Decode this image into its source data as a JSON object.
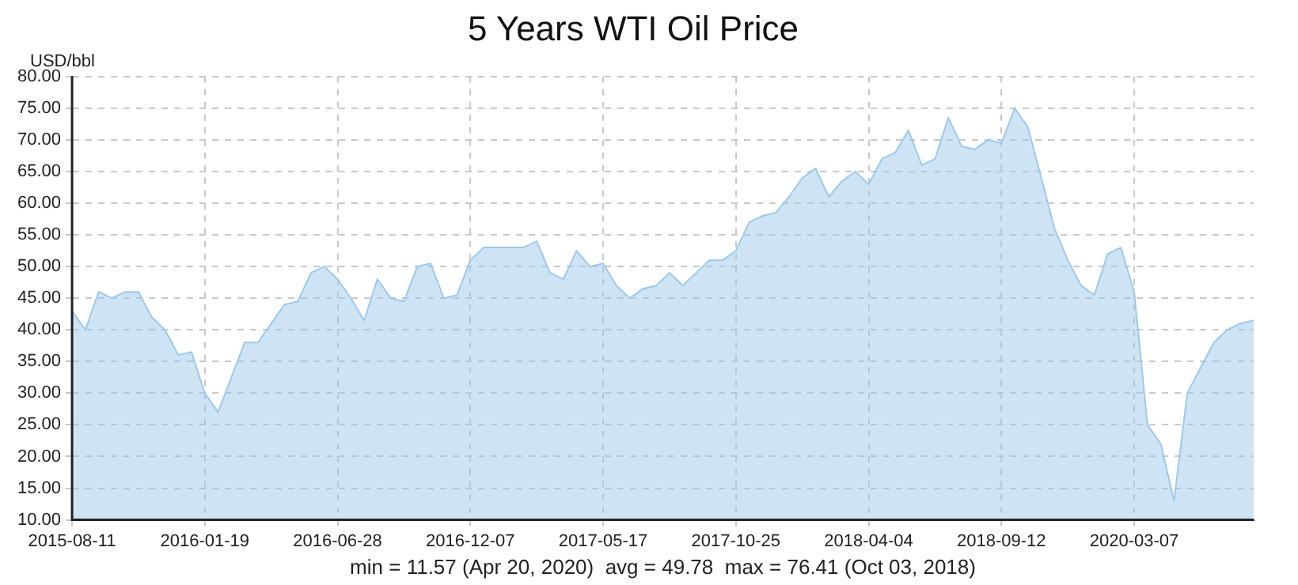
{
  "chart_data": {
    "type": "area",
    "title": "5 Years WTI Oil Price",
    "ylabel": "USD/bbl",
    "annotations": [
      "min = 11.57 (Apr 20, 2020)  avg = 49.78  max = 76.41 (Oct 03, 2018)"
    ],
    "categories": [
      "2015-08-11",
      null,
      null,
      null,
      null,
      null,
      null,
      null,
      null,
      null,
      "2016-01-19",
      null,
      null,
      null,
      null,
      null,
      null,
      null,
      null,
      null,
      "2016-06-28",
      null,
      null,
      null,
      null,
      null,
      null,
      null,
      null,
      null,
      "2016-12-07",
      null,
      null,
      null,
      null,
      null,
      null,
      null,
      null,
      null,
      "2017-05-17",
      null,
      null,
      null,
      null,
      null,
      null,
      null,
      null,
      null,
      "2017-10-25",
      null,
      null,
      null,
      null,
      null,
      null,
      null,
      null,
      null,
      "2018-04-04",
      null,
      null,
      null,
      null,
      null,
      null,
      null,
      null,
      null,
      "2018-09-12",
      null,
      null,
      null,
      null,
      null,
      null,
      null,
      null,
      null,
      "2020-03-07",
      null,
      null,
      null,
      null,
      null,
      null,
      null,
      null,
      null
    ],
    "series": [
      {
        "color": "#9dc9eb",
        "values": [
          43,
          40,
          46,
          45,
          46,
          46,
          42,
          40,
          36,
          36.5,
          30,
          27,
          32.5,
          38,
          38,
          41,
          44,
          44.5,
          49,
          50,
          48,
          45,
          41.5,
          48,
          45,
          44.5,
          50,
          50.5,
          45,
          45.5,
          51,
          53,
          53,
          53,
          53,
          54,
          49,
          48,
          52.5,
          50,
          50.5,
          47,
          45,
          46.5,
          47,
          49,
          47,
          49,
          51,
          51,
          52.5,
          57,
          58,
          58.5,
          61,
          64,
          65.5,
          61,
          63.5,
          65,
          63,
          67,
          68,
          71.5,
          66,
          67,
          73.5,
          69,
          68.5,
          70,
          69.5,
          75,
          72,
          64,
          56,
          51,
          47,
          45.5,
          52,
          53,
          46,
          25,
          22,
          13,
          30,
          34,
          38,
          40,
          41,
          41.5
        ]
      }
    ],
    "ylim": [
      10,
      80
    ],
    "yticks": [
      {
        "value": 10,
        "label": "10.00"
      },
      {
        "value": 15,
        "label": "15.00"
      },
      {
        "value": 20,
        "label": "20.00"
      },
      {
        "value": 25,
        "label": "25.00"
      },
      {
        "value": 30,
        "label": "30.00"
      },
      {
        "value": 35,
        "label": "35.00"
      },
      {
        "value": 40,
        "label": "40.00"
      },
      {
        "value": 45,
        "label": "45.00"
      },
      {
        "value": 50,
        "label": "50.00"
      },
      {
        "value": 55,
        "label": "55.00"
      },
      {
        "value": 60,
        "label": "60.00"
      },
      {
        "value": 65,
        "label": "65.00"
      },
      {
        "value": 70,
        "label": "70.00"
      },
      {
        "value": 75,
        "label": "75.00"
      },
      {
        "value": 80,
        "label": "80.00"
      }
    ],
    "grid": true,
    "line_style": "solid"
  }
}
